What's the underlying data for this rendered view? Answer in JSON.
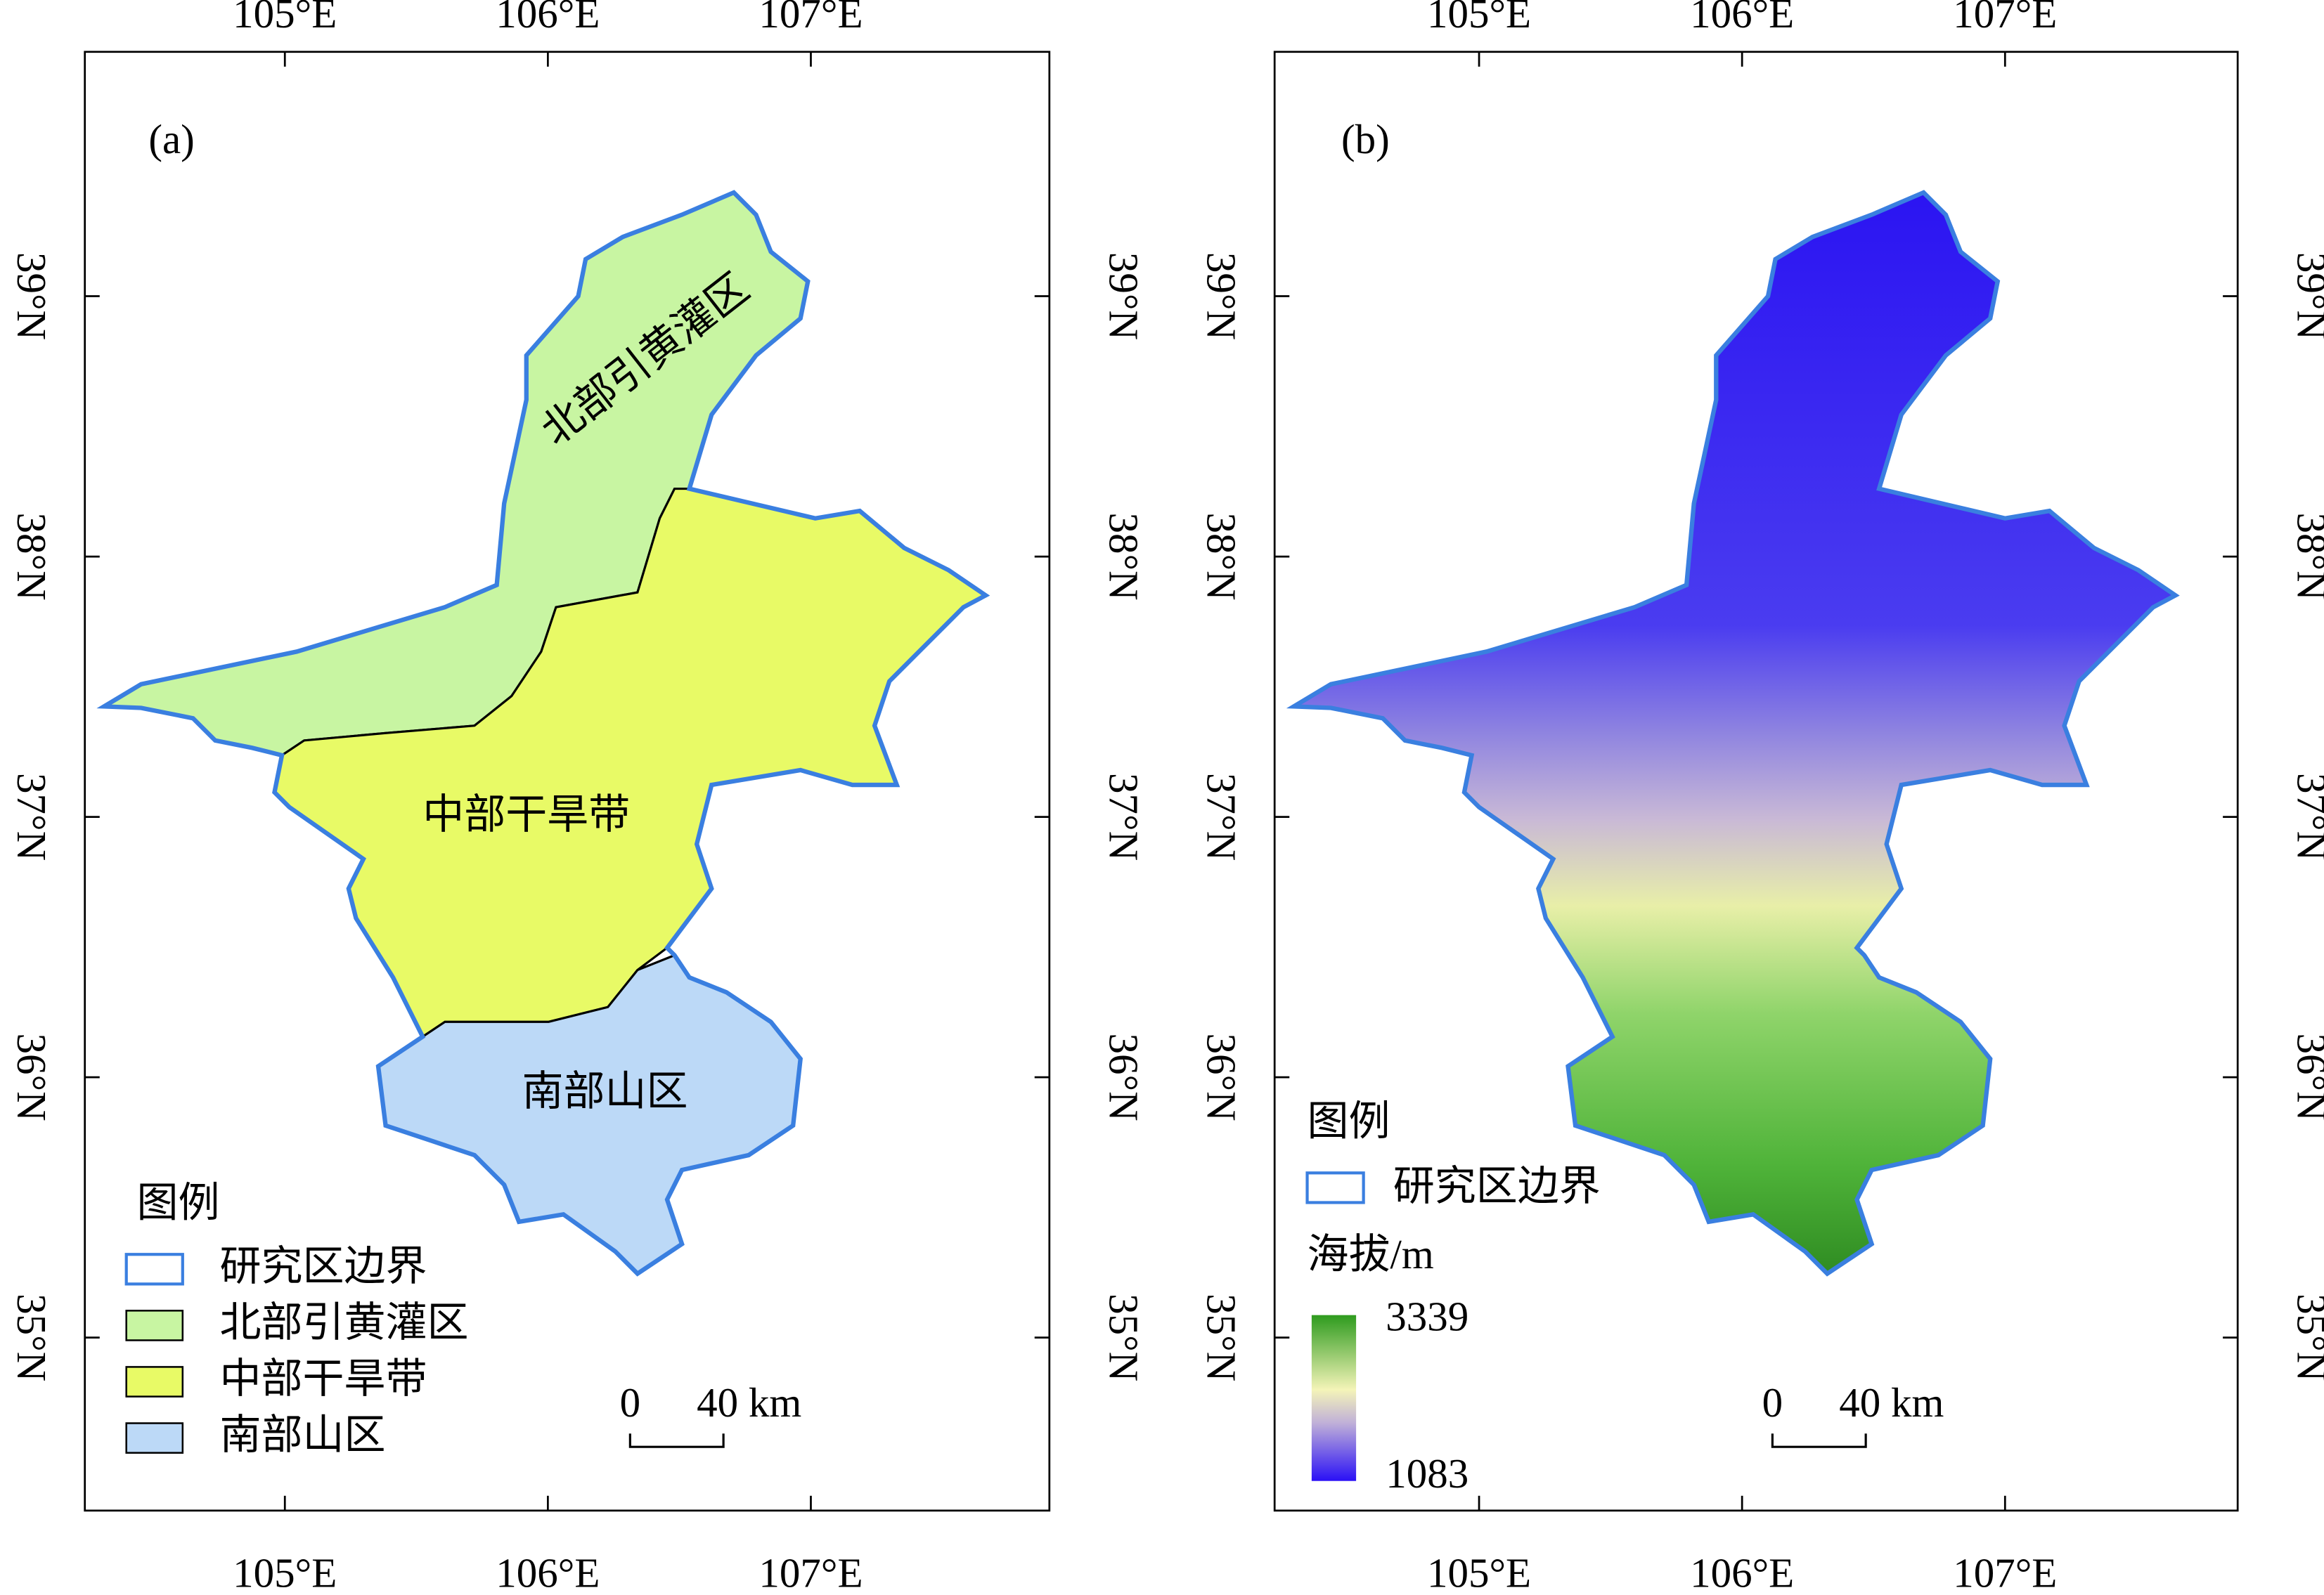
{
  "panels": [
    {
      "label": "(a)",
      "lon_ticks": [
        {
          "value": 105,
          "label": "105°E"
        },
        {
          "value": 106,
          "label": "106°E"
        },
        {
          "value": 107,
          "label": "107°E"
        }
      ],
      "lat_ticks": [
        {
          "value": 39,
          "label": "39°N"
        },
        {
          "value": 38,
          "label": "38°N"
        },
        {
          "value": 37,
          "label": "37°N"
        },
        {
          "value": 36,
          "label": "36°N"
        },
        {
          "value": 35,
          "label": "35°N"
        }
      ],
      "regions": [
        "北部引黄灌区",
        "中部干旱带",
        "南部山区"
      ],
      "legend": {
        "title": "图例",
        "items": [
          "研究区边界",
          "北部引黄灌区",
          "中部干旱带",
          "南部山区"
        ]
      },
      "scale_bar": {
        "start": "0",
        "end": "40 km"
      }
    },
    {
      "label": "(b)",
      "lon_ticks": [
        {
          "value": 105,
          "label": "105°E"
        },
        {
          "value": 106,
          "label": "106°E"
        },
        {
          "value": 107,
          "label": "107°E"
        }
      ],
      "lat_ticks": [
        {
          "value": 39,
          "label": "39°N"
        },
        {
          "value": 38,
          "label": "38°N"
        },
        {
          "value": 37,
          "label": "37°N"
        },
        {
          "value": 36,
          "label": "36°N"
        },
        {
          "value": 35,
          "label": "35°N"
        }
      ],
      "legend": {
        "title": "图例",
        "items": [
          "研究区边界"
        ],
        "colorbar_title": "海拔/m",
        "colorbar_max": 3339,
        "colorbar_min": 1083
      },
      "scale_bar": {
        "start": "0",
        "end": "40 km"
      }
    }
  ]
}
